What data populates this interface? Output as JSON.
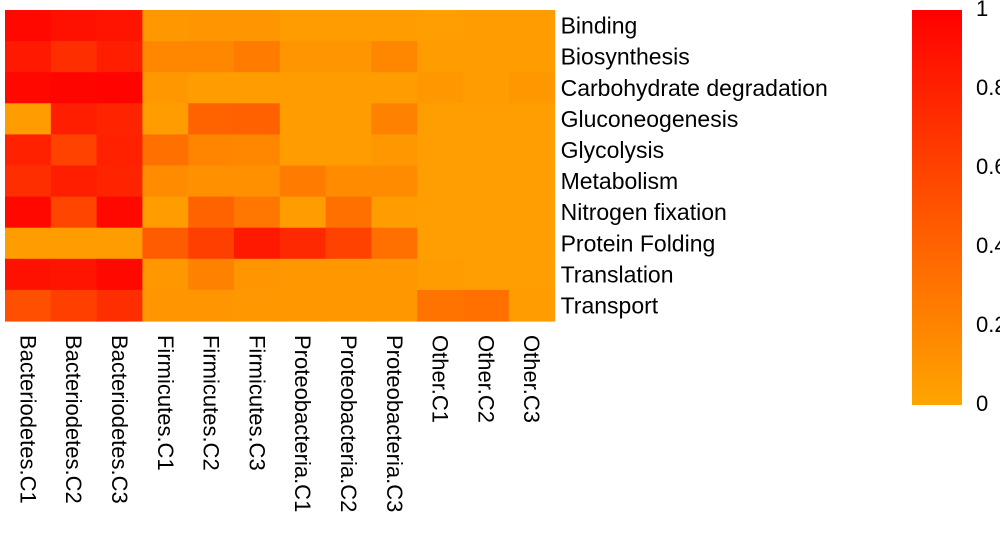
{
  "chart_data": {
    "type": "heatmap",
    "title": "",
    "rows": [
      "Binding",
      "Biosynthesis",
      "Carbohydrate degradation",
      "Gluconeogenesis",
      "Glycolysis",
      "Metabolism",
      "Nitrogen fixation",
      "Protein Folding",
      "Translation",
      "Transport"
    ],
    "columns": [
      "Bacteriodetes.C1",
      "Bacteriodetes.C2",
      "Bacteriodetes.C3",
      "Firmicutes.C1",
      "Firmicutes.C2",
      "Firmicutes.C3",
      "Proteobacteria.C1",
      "Proteobacteria.C2",
      "Proteobacteria.C3",
      "Other.C1",
      "Other.C2",
      "Other.C3"
    ],
    "values": [
      [
        0.95,
        0.9,
        0.88,
        0.08,
        0.1,
        0.1,
        0.05,
        0.05,
        0.05,
        0.04,
        0.05,
        0.05
      ],
      [
        0.85,
        0.72,
        0.82,
        0.18,
        0.18,
        0.25,
        0.1,
        0.1,
        0.18,
        0.05,
        0.05,
        0.05
      ],
      [
        0.95,
        0.97,
        0.98,
        0.08,
        0.05,
        0.05,
        0.05,
        0.05,
        0.05,
        0.08,
        0.05,
        0.08
      ],
      [
        0.05,
        0.82,
        0.78,
        0.05,
        0.4,
        0.42,
        0.05,
        0.05,
        0.22,
        0.04,
        0.04,
        0.04
      ],
      [
        0.8,
        0.6,
        0.8,
        0.32,
        0.2,
        0.18,
        0.05,
        0.05,
        0.08,
        0.04,
        0.04,
        0.04
      ],
      [
        0.72,
        0.82,
        0.78,
        0.15,
        0.12,
        0.12,
        0.25,
        0.15,
        0.15,
        0.04,
        0.04,
        0.04
      ],
      [
        0.95,
        0.58,
        0.95,
        0.05,
        0.4,
        0.28,
        0.05,
        0.32,
        0.05,
        0.04,
        0.04,
        0.04
      ],
      [
        0.05,
        0.05,
        0.05,
        0.45,
        0.62,
        0.85,
        0.75,
        0.6,
        0.32,
        0.04,
        0.04,
        0.04
      ],
      [
        0.9,
        0.88,
        0.95,
        0.08,
        0.22,
        0.1,
        0.08,
        0.08,
        0.08,
        0.05,
        0.04,
        0.04
      ],
      [
        0.52,
        0.62,
        0.72,
        0.1,
        0.1,
        0.08,
        0.08,
        0.08,
        0.08,
        0.3,
        0.32,
        0.05
      ]
    ],
    "colorbar": {
      "low_color": "#FFA500",
      "high_color": "#FF0000",
      "range": [
        0,
        1
      ],
      "ticks": [
        "0",
        "0.2",
        "0.4",
        "0.6",
        "0.8",
        "1"
      ]
    }
  }
}
